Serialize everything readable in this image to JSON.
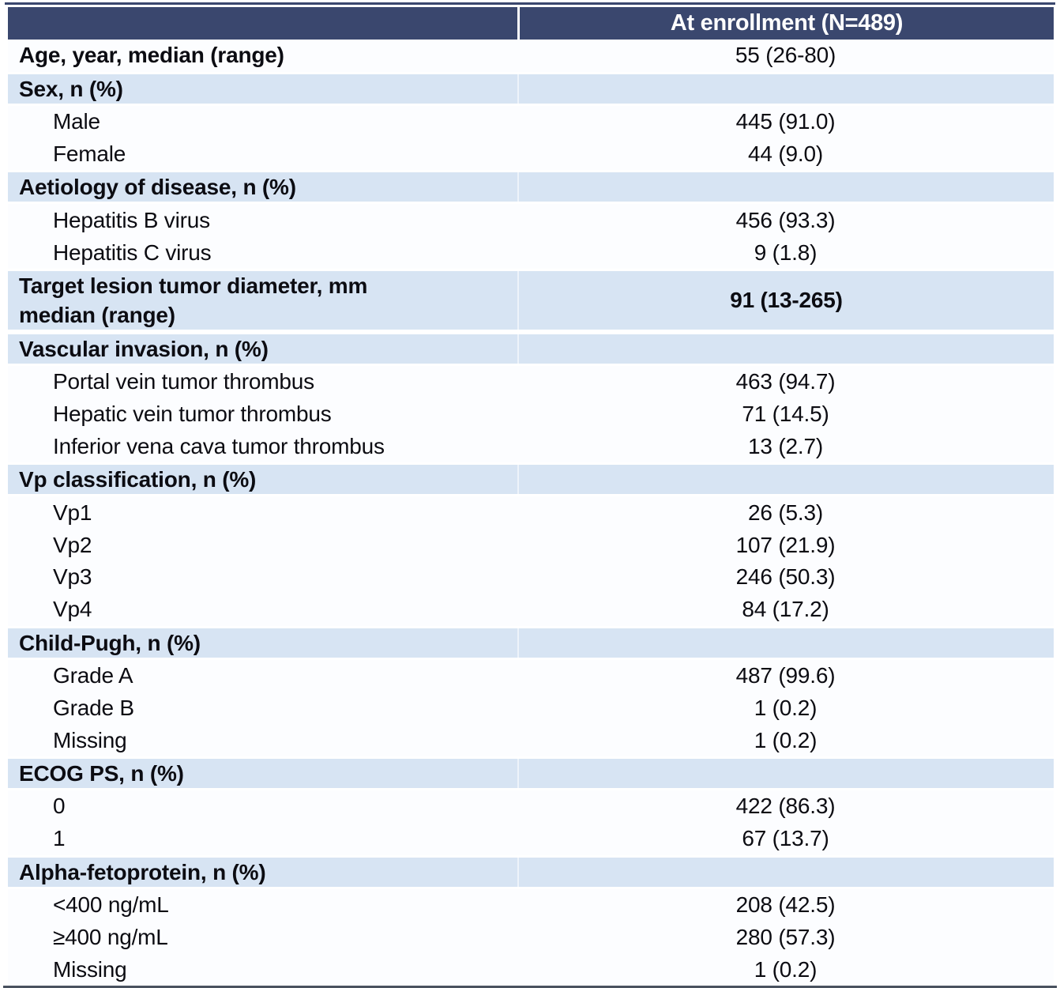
{
  "table": {
    "header": {
      "label_col": "",
      "value_col": "At enrollment (N=489)"
    },
    "rows": [
      {
        "type": "bold-label",
        "label": "Age, year, median (range)",
        "value": "55 (26-80)"
      },
      {
        "type": "section",
        "label": "Sex, n (%)",
        "value": ""
      },
      {
        "type": "item",
        "label": "Male",
        "value": "445 (91.0)"
      },
      {
        "type": "item",
        "label": "Female",
        "value": "44 (9.0)"
      },
      {
        "type": "section",
        "label": "Aetiology of disease, n (%)",
        "value": ""
      },
      {
        "type": "item",
        "label": "Hepatitis B virus",
        "value": "456 (93.3)"
      },
      {
        "type": "item",
        "label": "Hepatitis C virus",
        "value": "9 (1.8)"
      },
      {
        "type": "section",
        "label": "Target lesion tumor diameter, mm\nmedian (range)",
        "value": "91 (13-265)"
      },
      {
        "type": "section",
        "label": "Vascular invasion, n (%)",
        "value": ""
      },
      {
        "type": "item",
        "label": "Portal vein tumor thrombus",
        "value": "463 (94.7)"
      },
      {
        "type": "item",
        "label": "Hepatic vein tumor thrombus",
        "value": "71 (14.5)"
      },
      {
        "type": "item",
        "label": "Inferior vena cava tumor thrombus",
        "value": "13 (2.7)"
      },
      {
        "type": "section",
        "label": "Vp classification, n (%)",
        "value": ""
      },
      {
        "type": "item",
        "label": "Vp1",
        "value": "26 (5.3)"
      },
      {
        "type": "item",
        "label": "Vp2",
        "value": "107 (21.9)"
      },
      {
        "type": "item",
        "label": "Vp3",
        "value": "246 (50.3)"
      },
      {
        "type": "item",
        "label": "Vp4",
        "value": "84 (17.2)"
      },
      {
        "type": "section",
        "label": "Child-Pugh, n (%)",
        "value": ""
      },
      {
        "type": "item",
        "label": "Grade A",
        "value": "487 (99.6)"
      },
      {
        "type": "item",
        "label": "Grade B",
        "value": "1 (0.2)"
      },
      {
        "type": "item",
        "label": "Missing",
        "value": "1 (0.2)"
      },
      {
        "type": "section",
        "label": "ECOG PS, n (%)",
        "value": ""
      },
      {
        "type": "item",
        "label": "0",
        "value": "422 (86.3)"
      },
      {
        "type": "item",
        "label": "1",
        "value": "67 (13.7)"
      },
      {
        "type": "section",
        "label": "Alpha-fetoprotein, n (%)",
        "value": ""
      },
      {
        "type": "item",
        "label": "<400 ng/mL",
        "value": "208 (42.5)"
      },
      {
        "type": "item",
        "label": "≥400 ng/mL",
        "value": "280 (57.3)"
      },
      {
        "type": "item",
        "label": "Missing",
        "value": "1 (0.2)"
      }
    ],
    "colors": {
      "header_bg": "#3a476e",
      "header_text": "#ffffff",
      "section_bg": "#d7e4f3",
      "row_bg": "#fcfdff",
      "text": "#0c0c12",
      "top_rule": "#3a476e",
      "bottom_rule": "#49525f"
    }
  }
}
